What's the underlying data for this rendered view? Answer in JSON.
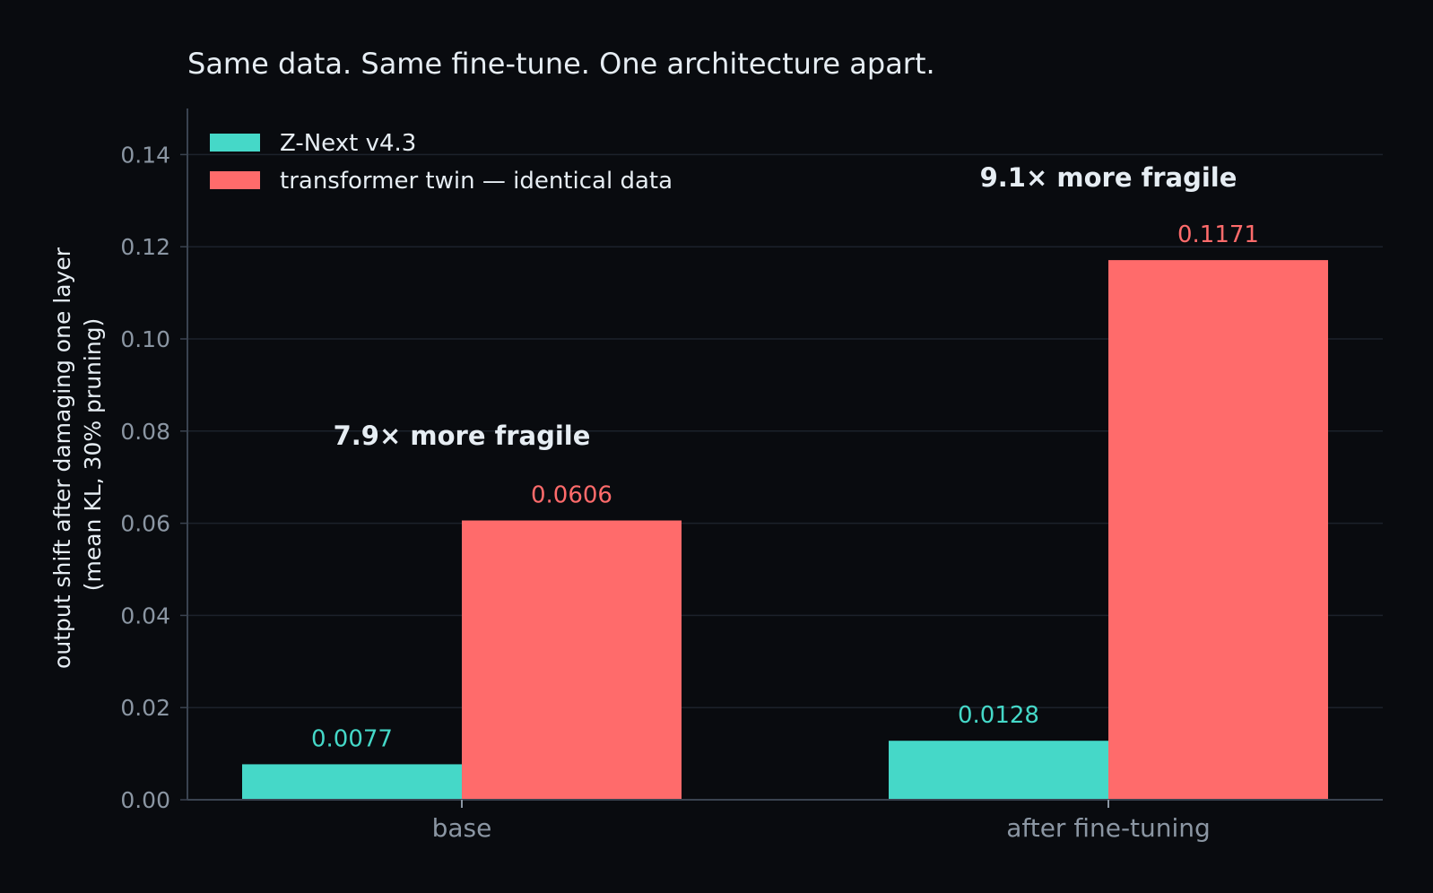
{
  "chart_data": {
    "type": "bar",
    "title": "Same data. Same fine-tune. One architecture apart.",
    "xlabel": "",
    "ylabel_lines": [
      "output shift after damaging one layer",
      "(mean KL, 30% pruning)"
    ],
    "categories": [
      "base",
      "after fine-tuning"
    ],
    "series": [
      {
        "name": "Z-Next v4.3",
        "color": "#45d8c8",
        "values": [
          0.0077,
          0.0128
        ],
        "labels": [
          "0.0077",
          "0.0128"
        ]
      },
      {
        "name": "transformer twin — identical data",
        "color": "#ff6b6b",
        "values": [
          0.0606,
          0.1171
        ],
        "labels": [
          "0.0606",
          "0.1171"
        ]
      }
    ],
    "ylim": [
      0,
      0.15
    ],
    "yticks": [
      0,
      0.02,
      0.04,
      0.06,
      0.08,
      0.1,
      0.12,
      0.14
    ],
    "ytick_labels": [
      "0.00",
      "0.02",
      "0.04",
      "0.06",
      "0.08",
      "0.10",
      "0.12",
      "0.14"
    ],
    "annotations": [
      {
        "text": "7.9× more fragile",
        "category": 0,
        "y": 0.079
      },
      {
        "text": "9.1× more fragile",
        "category": 1,
        "y": 0.135
      }
    ],
    "grid": "horizontal",
    "legend_position": "top-left",
    "colors": {
      "background": "#090b0f",
      "grid": "#1c222b",
      "axis": "#3a4350",
      "tick_text": "#8b96a3",
      "text": "#e6edf3"
    }
  }
}
